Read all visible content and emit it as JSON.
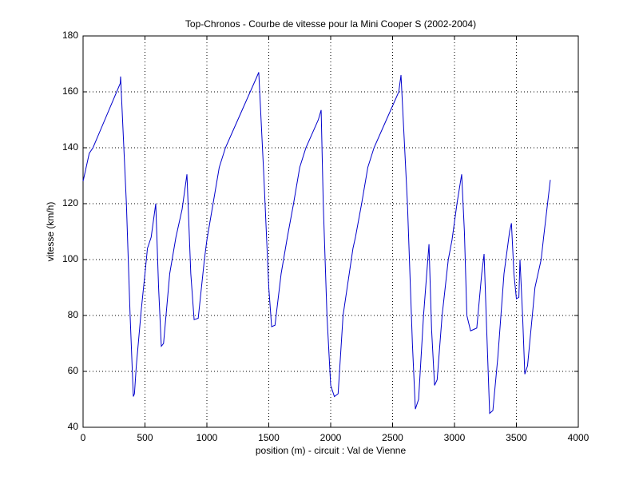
{
  "chart_data": {
    "type": "line",
    "title": "Top-Chronos - Courbe de vitesse pour la Mini Cooper S (2002-2004)",
    "x_label": "position (m) - circuit : Val de Vienne",
    "y_label": "vitesse (km/h)",
    "x": [
      0,
      50,
      80,
      300,
      303,
      350,
      380,
      406,
      415,
      430,
      470,
      500,
      520,
      550,
      587,
      610,
      632,
      650,
      700,
      750,
      800,
      839,
      870,
      897,
      930,
      980,
      1000,
      1050,
      1100,
      1150,
      1200,
      1300,
      1400,
      1419,
      1460,
      1500,
      1523,
      1550,
      1600,
      1650,
      1700,
      1750,
      1800,
      1900,
      1923,
      1940,
      1970,
      2000,
      2030,
      2060,
      2100,
      2180,
      2200,
      2250,
      2300,
      2350,
      2450,
      2550,
      2568,
      2620,
      2660,
      2684,
      2710,
      2750,
      2794,
      2815,
      2839,
      2860,
      2900,
      2950,
      2980,
      3020,
      3058,
      3080,
      3100,
      3130,
      3180,
      3220,
      3239,
      3260,
      3284,
      3310,
      3350,
      3400,
      3445,
      3460,
      3480,
      3500,
      3520,
      3529,
      3550,
      3568,
      3590,
      3650,
      3700,
      3720,
      3774
    ],
    "series": [
      {
        "name": "vitesse",
        "color": "#0000cc",
        "values": [
          128,
          138,
          140,
          163,
          165.5,
          120,
          80,
          51,
          52,
          62,
          82,
          95,
          104,
          108,
          120,
          90,
          69,
          70,
          95,
          108,
          118,
          130.5,
          95,
          78.5,
          79,
          100,
          107,
          120,
          133,
          140,
          145,
          155,
          165,
          167,
          130,
          90,
          76,
          76.5,
          95,
          108,
          120,
          133,
          140,
          150,
          153.5,
          120,
          80,
          55,
          51,
          52,
          80,
          104,
          108,
          120,
          133,
          140,
          150,
          160,
          166,
          120,
          70,
          46.5,
          50,
          80,
          105.5,
          75,
          55,
          57,
          80,
          100,
          107,
          120,
          130.5,
          110,
          80,
          74.5,
          75.5,
          95,
          102,
          75,
          45,
          46,
          65,
          95,
          110,
          113,
          95,
          86,
          86.5,
          100,
          80,
          59,
          62,
          90,
          100,
          108,
          128.5
        ]
      }
    ],
    "xlim": [
      0,
      4000
    ],
    "xticks": [
      0,
      500,
      1000,
      1500,
      2000,
      2500,
      3000,
      3500,
      4000
    ],
    "ylim": [
      40,
      180
    ],
    "yticks": [
      40,
      60,
      80,
      100,
      120,
      140,
      160,
      180
    ],
    "grid": true
  }
}
